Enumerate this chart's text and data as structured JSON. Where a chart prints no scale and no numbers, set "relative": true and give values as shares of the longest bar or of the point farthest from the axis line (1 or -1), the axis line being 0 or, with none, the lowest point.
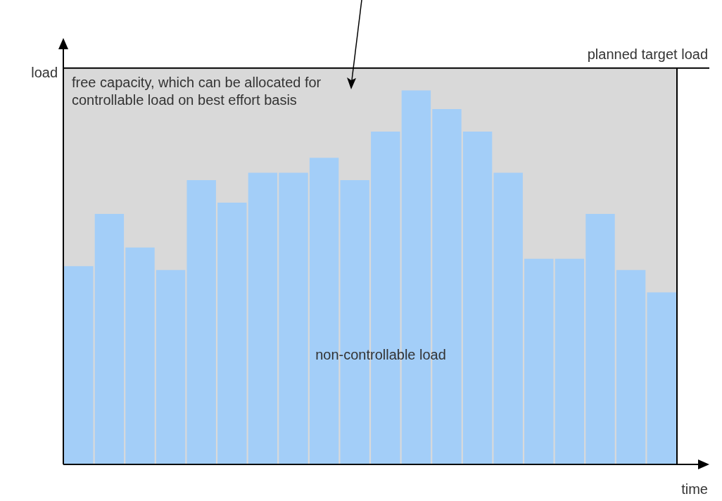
{
  "chart_data": {
    "type": "bar",
    "relative": true,
    "xlabel": "time",
    "ylabel": "load",
    "categories": [
      null,
      null,
      null,
      null,
      null,
      null,
      null,
      null,
      null,
      null,
      null,
      null,
      null,
      null,
      null,
      null,
      null,
      null,
      null,
      null
    ],
    "values": [
      0.53,
      0.67,
      0.58,
      0.52,
      0.76,
      0.7,
      0.78,
      0.78,
      0.82,
      0.76,
      0.89,
      1,
      0.95,
      0.89,
      0.78,
      0.55,
      0.55,
      0.67,
      0.52,
      0.46
    ],
    "color": "#a3cef8",
    "ref_lines": [
      {
        "axis": "y",
        "value": 1.06,
        "label": "planned target load",
        "color": "#000000"
      }
    ],
    "bands": [
      {
        "axis": "y",
        "from": 0,
        "to": 1.06,
        "color": "#d9d9d9"
      }
    ],
    "annotations": [
      "free capacity, which can be allocated for controllable load on best effort basis",
      "non-controllable load"
    ]
  }
}
